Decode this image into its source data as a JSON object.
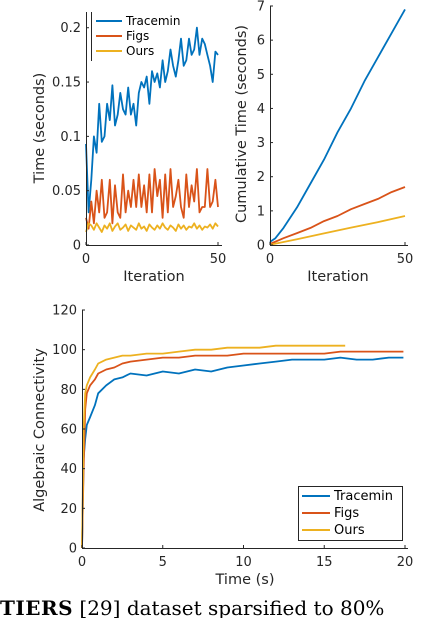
{
  "caption": {
    "bold": "TIERS",
    "rest": " [29] dataset sparsified to 80%"
  },
  "colors": {
    "tracemin": "#0072BD",
    "figs": "#D95319",
    "ours": "#EDB120"
  },
  "chart_data": [
    {
      "type": "line",
      "xlabel": "Iteration",
      "ylabel": "Time (seconds)",
      "xlim": [
        0,
        50
      ],
      "ylim": [
        0,
        0.22
      ],
      "xticks": [
        0,
        50
      ],
      "yticks": [
        0,
        0.05,
        0.1,
        0.15,
        0.2
      ],
      "xtick_labels": [
        "0",
        "50"
      ],
      "ytick_labels": [
        "0",
        "0.05",
        "0.1",
        "0.15",
        "0.2"
      ],
      "legend": "top-left",
      "series": [
        {
          "name": "Tracemin",
          "x": [
            0,
            1,
            2,
            3,
            4,
            5,
            6,
            7,
            8,
            9,
            10,
            11,
            12,
            13,
            14,
            15,
            16,
            17,
            18,
            19,
            20,
            21,
            22,
            23,
            24,
            25,
            26,
            27,
            28,
            29,
            30,
            31,
            32,
            33,
            34,
            35,
            36,
            37,
            38,
            39,
            40,
            41,
            42,
            43,
            44,
            45,
            46,
            47,
            48,
            49,
            50
          ],
          "values": [
            0.093,
            0.03,
            0.06,
            0.1,
            0.085,
            0.13,
            0.095,
            0.1,
            0.13,
            0.115,
            0.147,
            0.11,
            0.12,
            0.14,
            0.125,
            0.12,
            0.145,
            0.12,
            0.13,
            0.11,
            0.14,
            0.15,
            0.145,
            0.155,
            0.13,
            0.16,
            0.15,
            0.158,
            0.145,
            0.17,
            0.15,
            0.16,
            0.18,
            0.165,
            0.155,
            0.17,
            0.19,
            0.165,
            0.17,
            0.19,
            0.175,
            0.18,
            0.2,
            0.175,
            0.19,
            0.185,
            0.175,
            0.165,
            0.15,
            0.178,
            0.175
          ]
        },
        {
          "name": "Figs",
          "x": [
            0,
            1,
            2,
            3,
            4,
            5,
            6,
            7,
            8,
            9,
            10,
            11,
            12,
            13,
            14,
            15,
            16,
            17,
            18,
            19,
            20,
            21,
            22,
            23,
            24,
            25,
            26,
            27,
            28,
            29,
            30,
            31,
            32,
            33,
            34,
            35,
            36,
            37,
            38,
            39,
            40,
            41,
            42,
            43,
            44,
            45,
            46,
            47,
            48,
            49,
            50
          ],
          "values": [
            0.025,
            0.015,
            0.04,
            0.02,
            0.05,
            0.03,
            0.06,
            0.025,
            0.03,
            0.06,
            0.02,
            0.055,
            0.03,
            0.025,
            0.065,
            0.03,
            0.05,
            0.035,
            0.06,
            0.035,
            0.065,
            0.035,
            0.055,
            0.03,
            0.065,
            0.03,
            0.07,
            0.045,
            0.06,
            0.025,
            0.065,
            0.03,
            0.07,
            0.035,
            0.045,
            0.06,
            0.035,
            0.025,
            0.065,
            0.035,
            0.055,
            0.04,
            0.07,
            0.03,
            0.035,
            0.035,
            0.07,
            0.035,
            0.04,
            0.06,
            0.035
          ]
        },
        {
          "name": "Ours",
          "x": [
            0,
            1,
            2,
            3,
            4,
            5,
            6,
            7,
            8,
            9,
            10,
            11,
            12,
            13,
            14,
            15,
            16,
            17,
            18,
            19,
            20,
            21,
            22,
            23,
            24,
            25,
            26,
            27,
            28,
            29,
            30,
            31,
            32,
            33,
            34,
            35,
            36,
            37,
            38,
            39,
            40,
            41,
            42,
            43,
            44,
            45,
            46,
            47,
            48,
            49,
            50
          ],
          "values": [
            0.012,
            0.02,
            0.018,
            0.014,
            0.02,
            0.016,
            0.012,
            0.018,
            0.015,
            0.02,
            0.013,
            0.017,
            0.02,
            0.014,
            0.016,
            0.019,
            0.013,
            0.018,
            0.016,
            0.014,
            0.02,
            0.015,
            0.017,
            0.013,
            0.019,
            0.016,
            0.014,
            0.018,
            0.015,
            0.02,
            0.016,
            0.014,
            0.018,
            0.016,
            0.013,
            0.019,
            0.015,
            0.018,
            0.014,
            0.017,
            0.016,
            0.02,
            0.015,
            0.018,
            0.014,
            0.017,
            0.016,
            0.019,
            0.015,
            0.02,
            0.017
          ]
        }
      ]
    },
    {
      "type": "line",
      "xlabel": "Iteration",
      "ylabel": "Cumulative Time (seconds)",
      "xlim": [
        0,
        50
      ],
      "ylim": [
        0,
        7
      ],
      "xticks": [
        0,
        50
      ],
      "yticks": [
        0,
        1,
        2,
        3,
        4,
        5,
        6,
        7
      ],
      "xtick_labels": [
        "0",
        "50"
      ],
      "ytick_labels": [
        "0",
        "1",
        "2",
        "3",
        "4",
        "5",
        "6",
        "7"
      ],
      "series": [
        {
          "name": "Tracemin",
          "x": [
            0,
            2,
            5,
            10,
            15,
            20,
            25,
            30,
            35,
            40,
            45,
            50
          ],
          "values": [
            0.09,
            0.2,
            0.5,
            1.1,
            1.8,
            2.5,
            3.3,
            4.0,
            4.8,
            5.5,
            6.2,
            6.9
          ]
        },
        {
          "name": "Figs",
          "x": [
            0,
            5,
            10,
            15,
            20,
            25,
            30,
            35,
            40,
            45,
            50
          ],
          "values": [
            0.03,
            0.2,
            0.35,
            0.5,
            0.7,
            0.85,
            1.05,
            1.2,
            1.35,
            1.55,
            1.7
          ]
        },
        {
          "name": "Ours",
          "x": [
            0,
            10,
            20,
            30,
            40,
            50
          ],
          "values": [
            0.01,
            0.17,
            0.34,
            0.51,
            0.67,
            0.85
          ]
        }
      ]
    },
    {
      "type": "line",
      "xlabel": "Time (s)",
      "ylabel": "Algebraic Connectivity",
      "xlim": [
        0,
        20
      ],
      "ylim": [
        0,
        120
      ],
      "xticks": [
        0,
        5,
        10,
        15,
        20
      ],
      "yticks": [
        0,
        20,
        40,
        60,
        80,
        100,
        120
      ],
      "xtick_labels": [
        "0",
        "5",
        "10",
        "15",
        "20"
      ],
      "ytick_labels": [
        "0",
        "20",
        "40",
        "60",
        "80",
        "100",
        "120"
      ],
      "legend": "bottom-right",
      "series": [
        {
          "name": "Tracemin",
          "x": [
            0,
            0.1,
            0.2,
            0.3,
            0.5,
            0.8,
            1,
            1.5,
            2,
            2.5,
            3,
            4,
            5,
            6,
            7,
            8,
            9,
            10,
            11,
            12,
            13,
            14,
            15,
            16,
            17,
            18,
            19,
            19.9
          ],
          "values": [
            0,
            45,
            55,
            62,
            66,
            72,
            78,
            82,
            85,
            86,
            88,
            87,
            89,
            88,
            90,
            89,
            91,
            92,
            93,
            94,
            95,
            95,
            95,
            96,
            95,
            95,
            96,
            96
          ]
        },
        {
          "name": "Figs",
          "x": [
            0,
            0.1,
            0.2,
            0.3,
            0.5,
            0.8,
            1,
            1.5,
            2,
            2.5,
            3,
            4,
            5,
            6,
            7,
            8,
            9,
            10,
            11,
            12,
            13,
            14,
            15,
            16,
            17,
            18,
            19,
            19.9
          ],
          "values": [
            0,
            40,
            70,
            78,
            82,
            85,
            88,
            90,
            91,
            93,
            94,
            95,
            96,
            96,
            97,
            97,
            97,
            98,
            98,
            98,
            98,
            98,
            98,
            99,
            99,
            99,
            99,
            99
          ]
        },
        {
          "name": "Ours",
          "x": [
            0,
            0.1,
            0.2,
            0.3,
            0.5,
            0.8,
            1,
            1.5,
            2,
            2.5,
            3,
            4,
            5,
            6,
            7,
            8,
            9,
            10,
            11,
            12,
            13,
            14,
            15,
            16,
            16.3
          ],
          "values": [
            0,
            60,
            78,
            82,
            86,
            90,
            93,
            95,
            96,
            97,
            97,
            98,
            98,
            99,
            100,
            100,
            101,
            101,
            101,
            102,
            102,
            102,
            102,
            102,
            102
          ]
        }
      ]
    }
  ]
}
